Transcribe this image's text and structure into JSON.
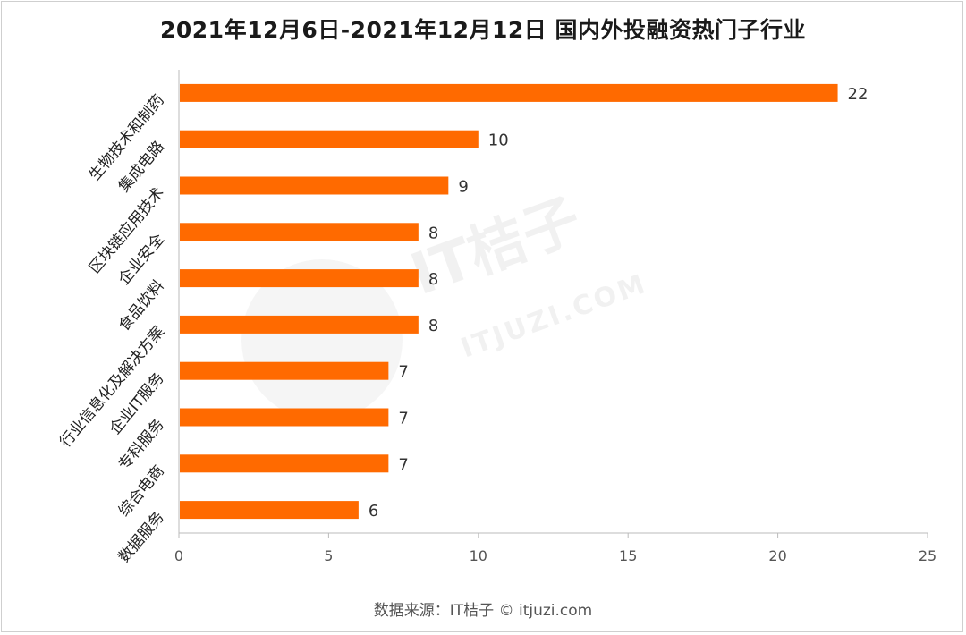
{
  "title": "2021年12月6日-2021年12月12日 国内外投融资热门子行业",
  "source": "数据来源：IT桔子 © itjuzi.com",
  "watermark": {
    "main": "IT桔子",
    "sub": "ITJUZI.COM"
  },
  "colors": {
    "bar": "#ff6a00",
    "axis": "#bbbbbb"
  },
  "chart_data": {
    "type": "bar",
    "orientation": "horizontal",
    "title": "2021年12月6日-2021年12月12日 国内外投融资热门子行业",
    "categories": [
      "生物技术和制药",
      "集成电路",
      "区块链应用技术",
      "企业安全",
      "食品饮料",
      "行业信息化及解决方案",
      "企业IT服务",
      "专科服务",
      "综合电商",
      "数据服务"
    ],
    "values": [
      22,
      10,
      9,
      8,
      8,
      8,
      7,
      7,
      7,
      6
    ],
    "xlim": [
      0,
      25
    ],
    "xticks": [
      0,
      5,
      10,
      15,
      20,
      25
    ],
    "data_labels": true,
    "grid": false,
    "xlabel": "",
    "ylabel": ""
  }
}
